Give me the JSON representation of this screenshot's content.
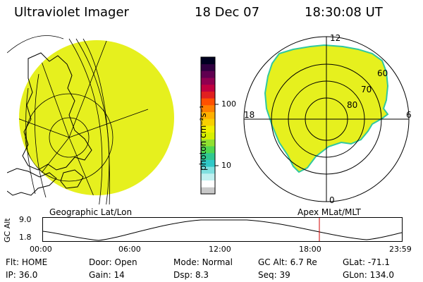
{
  "header": {
    "title": "Ultraviolet Imager",
    "date": "18 Dec 07",
    "time": "18:30:08 UT"
  },
  "colorbar": {
    "unit_label": "photon cm⁻²s⁻¹",
    "tick_100": "100",
    "tick_10": "10",
    "colors": [
      "#c8c8c8",
      "#ffffff",
      "#c0f0f0",
      "#80e0e0",
      "#30c8c8",
      "#30c890",
      "#50d850",
      "#90e030",
      "#d8f000",
      "#f0f000",
      "#f8d000",
      "#ffb000",
      "#ff8000",
      "#ff5000",
      "#e02020",
      "#c00040",
      "#900050",
      "#600050",
      "#300040",
      "#000020"
    ]
  },
  "left_panel": {
    "label": "Geographic Lat/Lon",
    "fill_color": "#e6f01e"
  },
  "right_panel": {
    "label": "Apex MLat/MLT",
    "mlt_12": "12",
    "mlt_18": "18",
    "mlt_6": "6",
    "mlt_0": "0",
    "lat_60": "60",
    "lat_70": "70",
    "lat_80": "80",
    "fill_color": "#e6f01e",
    "edge_color": "#30c8a0"
  },
  "altitude_plot": {
    "axis_label": "GC Alt",
    "y_max": "9.0",
    "y_min": "1.8",
    "x_ticks": [
      "00:00",
      "06:00",
      "12:00",
      "18:00",
      "23:59"
    ],
    "marker_color": "#d00000"
  },
  "status": {
    "row1": [
      {
        "key": "Flt:",
        "value": "HOME"
      },
      {
        "key": "Door:",
        "value": "Open"
      },
      {
        "key": "Mode:",
        "value": "Normal"
      },
      {
        "key": "GC Alt:",
        "value": "6.7 Re"
      },
      {
        "key": "GLat:",
        "value": "-71.1"
      }
    ],
    "row2": [
      {
        "key": "IP:",
        "value": "36.0"
      },
      {
        "key": "Gain:",
        "value": "14"
      },
      {
        "key": "Dsp:",
        "value": "8.3"
      },
      {
        "key": "Seq:",
        "value": "39"
      },
      {
        "key": "GLon:",
        "value": "134.0"
      }
    ]
  }
}
